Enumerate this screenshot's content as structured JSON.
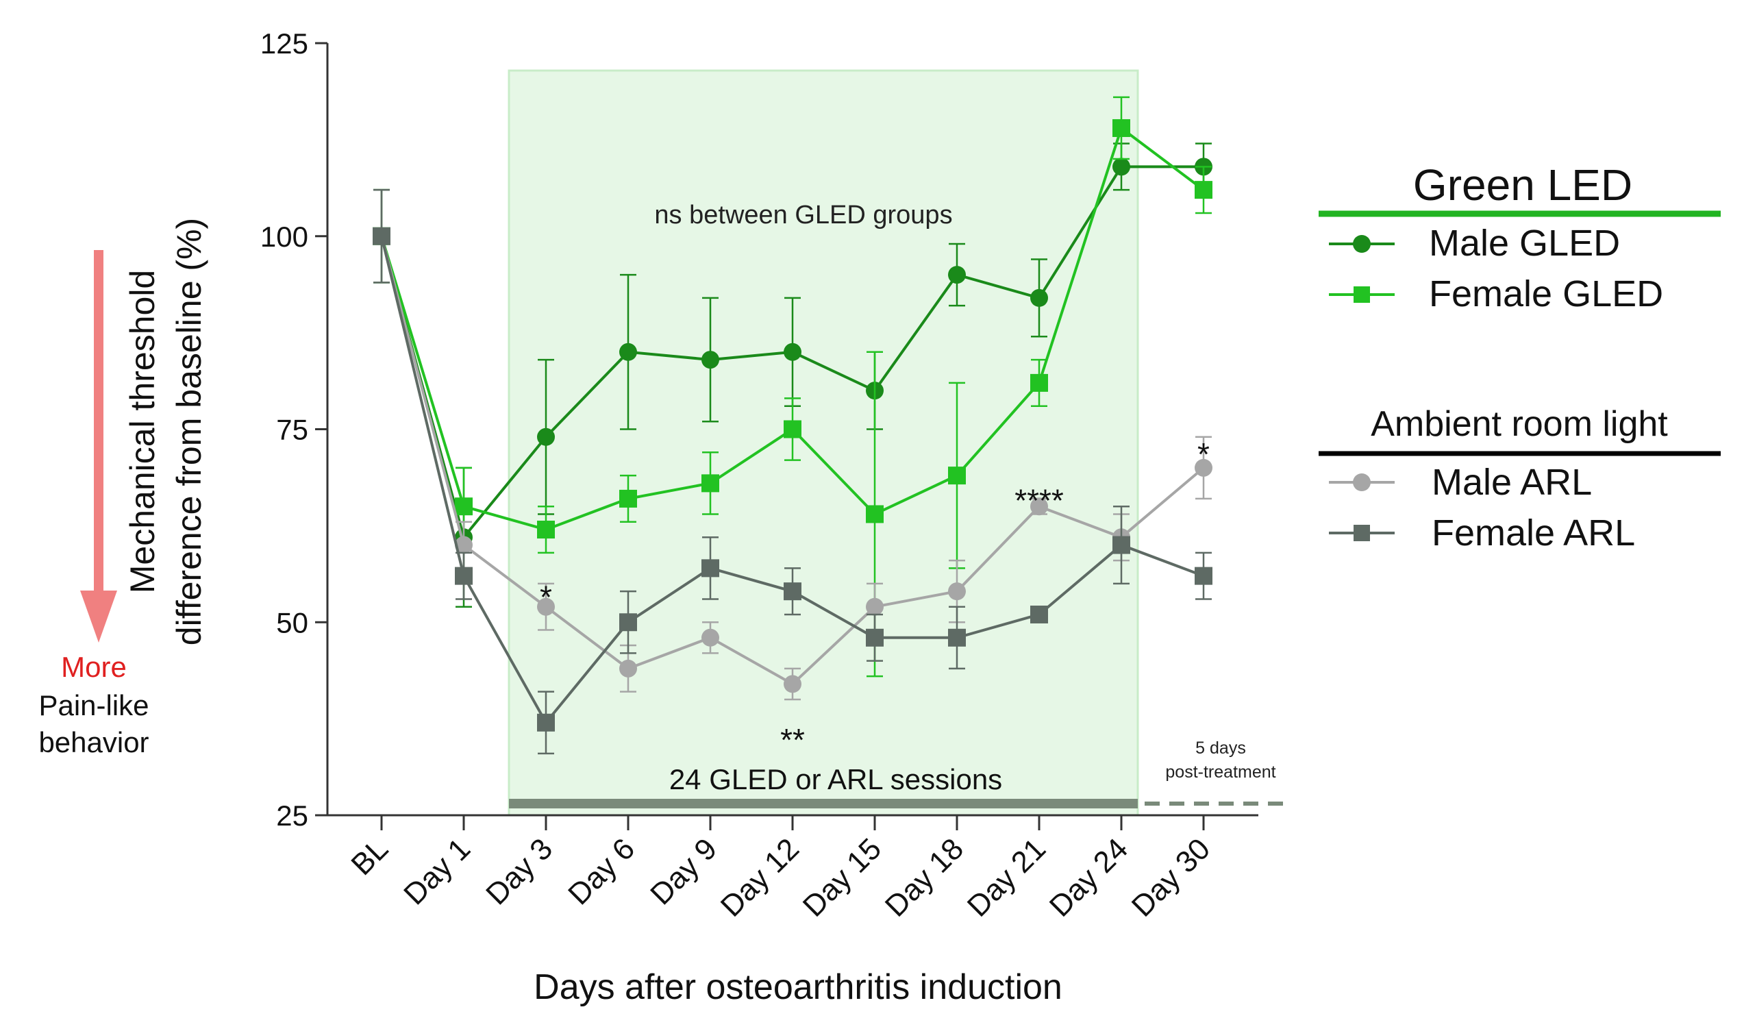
{
  "chart_data": {
    "type": "line",
    "title": "",
    "xlabel": "Days after osteoarthritis induction",
    "ylabel_line1": "Mechanical threshold",
    "ylabel_line2": "difference from baseline (%)",
    "ylim": [
      25,
      125
    ],
    "yticks": [
      25,
      50,
      75,
      100,
      125
    ],
    "categories": [
      "BL",
      "Day 1",
      "Day 3",
      "Day 6",
      "Day 9",
      "Day 12",
      "Day 15",
      "Day 18",
      "Day 21",
      "Day 24",
      "Day 30"
    ],
    "series": [
      {
        "name": "Male GLED",
        "group": "gled",
        "color": "#1a8a1a",
        "marker": "circle",
        "values": [
          100,
          61,
          74,
          85,
          84,
          85,
          80,
          95,
          92,
          109,
          109
        ],
        "err": [
          6,
          9,
          10,
          10,
          8,
          7,
          5,
          4,
          5,
          3,
          3
        ]
      },
      {
        "name": "Female GLED",
        "group": "gled",
        "color": "#22c222",
        "marker": "square",
        "values": [
          100,
          65,
          62,
          66,
          68,
          75,
          64,
          69,
          81,
          114,
          106
        ],
        "err": [
          6,
          5,
          3,
          3,
          4,
          4,
          21,
          12,
          3,
          4,
          3
        ]
      },
      {
        "name": "Male ARL",
        "group": "arl",
        "color": "#a6a6a6",
        "marker": "circle",
        "values": [
          100,
          60,
          52,
          44,
          48,
          42,
          52,
          54,
          65,
          61,
          70
        ],
        "err": [
          6,
          3,
          3,
          3,
          2,
          2,
          3,
          4,
          1,
          3,
          4
        ]
      },
      {
        "name": "Female ARL",
        "group": "arl",
        "color": "#5e6a64",
        "marker": "square",
        "values": [
          100,
          56,
          37,
          50,
          57,
          54,
          48,
          48,
          51,
          60,
          56
        ],
        "err": [
          6,
          3,
          4,
          4,
          4,
          3,
          3,
          4,
          1,
          5,
          3
        ]
      }
    ],
    "annotations": [
      {
        "text": "*",
        "category_index": 2,
        "y": 54.5
      },
      {
        "text": "**",
        "category_index": 5,
        "y": 36
      },
      {
        "text": "****",
        "category_index": 8,
        "y": 67
      },
      {
        "text": "*",
        "category_index": 10,
        "y": 73
      }
    ],
    "shaded_region": {
      "from_index": 1.55,
      "to_index": 9.2,
      "color": "#e6f7e6",
      "label": "ns between GLED groups"
    },
    "sessions_bar": {
      "label": "24 GLED or ARL sessions",
      "color": "#7a8a7a"
    },
    "post_treatment": {
      "line1": "5 days",
      "line2": "post-treatment"
    },
    "legend": {
      "gled_title": "Green LED",
      "gled_rule_color": "#22b422",
      "arl_title": "Ambient room light",
      "arl_rule_color": "#000000"
    },
    "side_note": {
      "arrow_color": "#f08080",
      "line1": "More",
      "line1_color": "#e02020",
      "line2": "Pain-like",
      "line3": "behavior"
    }
  }
}
